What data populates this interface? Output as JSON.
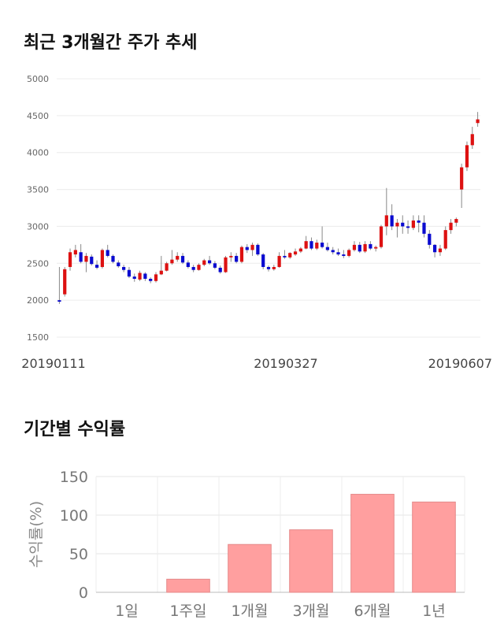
{
  "sections": {
    "price_title": "최근 3개월간 주가 추세",
    "return_title": "기간별 수익률"
  },
  "chart_data": [
    {
      "type": "candlestick",
      "title": "최근 3개월간 주가 추세",
      "ylim": [
        1500,
        5000
      ],
      "yticks": [
        1500,
        2000,
        2500,
        3000,
        3500,
        4000,
        4500,
        5000
      ],
      "x_tick_labels": [
        "20190111",
        "20190327",
        "20190607"
      ],
      "grid": true,
      "colors": {
        "up": "#dd1111",
        "down": "#0a0ad0",
        "wick": "#888888"
      },
      "ohlc": [
        [
          2000,
          2450,
          1950,
          1980
        ],
        [
          2080,
          2450,
          2050,
          2420
        ],
        [
          2450,
          2700,
          2400,
          2650
        ],
        [
          2620,
          2750,
          2580,
          2680
        ],
        [
          2650,
          2760,
          2500,
          2520
        ],
        [
          2520,
          2640,
          2380,
          2600
        ],
        [
          2590,
          2620,
          2470,
          2490
        ],
        [
          2480,
          2540,
          2420,
          2440
        ],
        [
          2450,
          2700,
          2430,
          2680
        ],
        [
          2680,
          2750,
          2580,
          2600
        ],
        [
          2600,
          2620,
          2500,
          2520
        ],
        [
          2510,
          2540,
          2440,
          2460
        ],
        [
          2450,
          2480,
          2380,
          2410
        ],
        [
          2410,
          2450,
          2300,
          2320
        ],
        [
          2320,
          2360,
          2250,
          2290
        ],
        [
          2280,
          2400,
          2260,
          2370
        ],
        [
          2360,
          2380,
          2260,
          2290
        ],
        [
          2290,
          2310,
          2230,
          2260
        ],
        [
          2260,
          2380,
          2240,
          2350
        ],
        [
          2350,
          2600,
          2340,
          2400
        ],
        [
          2400,
          2520,
          2390,
          2500
        ],
        [
          2500,
          2680,
          2480,
          2550
        ],
        [
          2550,
          2650,
          2520,
          2600
        ],
        [
          2600,
          2640,
          2490,
          2510
        ],
        [
          2510,
          2540,
          2430,
          2450
        ],
        [
          2450,
          2480,
          2380,
          2410
        ],
        [
          2410,
          2500,
          2400,
          2480
        ],
        [
          2480,
          2560,
          2460,
          2540
        ],
        [
          2540,
          2600,
          2480,
          2500
        ],
        [
          2500,
          2530,
          2420,
          2440
        ],
        [
          2440,
          2470,
          2360,
          2380
        ],
        [
          2380,
          2600,
          2370,
          2580
        ],
        [
          2580,
          2650,
          2520,
          2600
        ],
        [
          2600,
          2640,
          2500,
          2520
        ],
        [
          2520,
          2740,
          2500,
          2720
        ],
        [
          2720,
          2760,
          2640,
          2680
        ],
        [
          2680,
          2780,
          2600,
          2750
        ],
        [
          2750,
          2770,
          2600,
          2620
        ],
        [
          2620,
          2640,
          2420,
          2450
        ],
        [
          2450,
          2470,
          2390,
          2420
        ],
        [
          2420,
          2480,
          2400,
          2450
        ],
        [
          2450,
          2650,
          2440,
          2600
        ],
        [
          2600,
          2680,
          2560,
          2580
        ],
        [
          2580,
          2650,
          2560,
          2640
        ],
        [
          2620,
          2700,
          2600,
          2660
        ],
        [
          2660,
          2720,
          2640,
          2700
        ],
        [
          2700,
          2870,
          2690,
          2800
        ],
        [
          2800,
          2850,
          2680,
          2700
        ],
        [
          2700,
          2820,
          2680,
          2780
        ],
        [
          2780,
          3000,
          2700,
          2720
        ],
        [
          2720,
          2780,
          2660,
          2680
        ],
        [
          2680,
          2720,
          2620,
          2650
        ],
        [
          2650,
          2700,
          2600,
          2620
        ],
        [
          2620,
          2680,
          2570,
          2600
        ],
        [
          2600,
          2700,
          2580,
          2680
        ],
        [
          2680,
          2800,
          2660,
          2750
        ],
        [
          2750,
          2790,
          2640,
          2660
        ],
        [
          2660,
          2800,
          2640,
          2760
        ],
        [
          2760,
          2800,
          2680,
          2700
        ],
        [
          2700,
          2740,
          2660,
          2720
        ],
        [
          2720,
          3020,
          2700,
          3000
        ],
        [
          3000,
          3520,
          2880,
          3150
        ],
        [
          3150,
          3300,
          2950,
          3000
        ],
        [
          3000,
          3100,
          2850,
          3050
        ],
        [
          3050,
          3150,
          2900,
          3000
        ],
        [
          3000,
          3080,
          2900,
          2980
        ],
        [
          2980,
          3150,
          2950,
          3080
        ],
        [
          3080,
          3150,
          2920,
          3050
        ],
        [
          3050,
          3150,
          2850,
          2900
        ],
        [
          2900,
          2950,
          2700,
          2750
        ],
        [
          2750,
          2760,
          2580,
          2650
        ],
        [
          2650,
          2750,
          2600,
          2700
        ],
        [
          2700,
          3000,
          2680,
          2950
        ],
        [
          2950,
          3100,
          2900,
          3050
        ],
        [
          3050,
          3120,
          3000,
          3100
        ],
        [
          3500,
          3850,
          3250,
          3800
        ],
        [
          3800,
          4150,
          3750,
          4100
        ],
        [
          4100,
          4350,
          4050,
          4250
        ],
        [
          4400,
          4550,
          4350,
          4450
        ]
      ]
    },
    {
      "type": "bar",
      "title": "기간별 수익률",
      "ylabel": "수익률(%)",
      "categories": [
        "1일",
        "1주일",
        "1개월",
        "3개월",
        "6개월",
        "1년"
      ],
      "values": [
        0,
        17,
        62,
        81,
        127,
        117
      ],
      "ylim": [
        0,
        150
      ],
      "yticks": [
        0,
        50,
        100,
        150
      ],
      "grid": true,
      "colors": {
        "bar": "#ff9f9f",
        "bar_stroke": "#e48a8a"
      }
    }
  ]
}
